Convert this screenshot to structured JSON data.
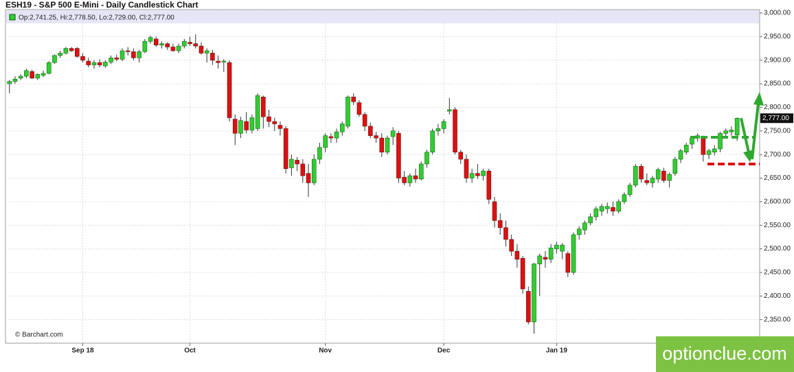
{
  "chart_data": {
    "type": "candlestick",
    "title": "ESH19 - S&P 500 E-Mini - Daily Candlestick Chart",
    "legend_text": "Op:2,741.25, Hi:2,778.50, Lo:2,729.00, Cl:2,777.00",
    "last_price_label": "2,777.00",
    "source": "© Barchart.com",
    "watermark": "optionclue.com",
    "up_color": "#33cc33",
    "down_color": "#dd1111",
    "grid": true,
    "ylim": [
      2300,
      3000
    ],
    "yticks": [
      {
        "value": 2350,
        "label": "2,350.00"
      },
      {
        "value": 2400,
        "label": "2,400.00"
      },
      {
        "value": 2450,
        "label": "2,450.00"
      },
      {
        "value": 2500,
        "label": "2,500.00"
      },
      {
        "value": 2550,
        "label": "2,550.00"
      },
      {
        "value": 2600,
        "label": "2,600.00"
      },
      {
        "value": 2650,
        "label": "2,650.00"
      },
      {
        "value": 2700,
        "label": "2,700.00"
      },
      {
        "value": 2750,
        "label": "2,750.00"
      },
      {
        "value": 2800,
        "label": "2,800.00"
      },
      {
        "value": 2850,
        "label": "2,850.00"
      },
      {
        "value": 2900,
        "label": "2,900.00"
      },
      {
        "value": 2950,
        "label": "2,950.00"
      },
      {
        "value": 3000,
        "label": "3,000.00"
      }
    ],
    "xlim": [
      -0.7,
      133
    ],
    "xticks": [
      {
        "value": 13,
        "label": "Sep 18"
      },
      {
        "value": 32,
        "label": "Oct"
      },
      {
        "value": 56,
        "label": "Nov"
      },
      {
        "value": 77,
        "label": "Dec"
      },
      {
        "value": 97,
        "label": "Jan 19"
      }
    ],
    "candles": [
      [
        2850,
        2858,
        2830,
        2855
      ],
      [
        2855,
        2866,
        2850,
        2860
      ],
      [
        2862,
        2870,
        2858,
        2866
      ],
      [
        2866,
        2882,
        2862,
        2878
      ],
      [
        2876,
        2880,
        2860,
        2862
      ],
      [
        2862,
        2872,
        2858,
        2870
      ],
      [
        2868,
        2878,
        2864,
        2872
      ],
      [
        2872,
        2898,
        2870,
        2895
      ],
      [
        2895,
        2912,
        2892,
        2910
      ],
      [
        2910,
        2920,
        2905,
        2915
      ],
      [
        2915,
        2928,
        2912,
        2925
      ],
      [
        2925,
        2928,
        2918,
        2920
      ],
      [
        2925,
        2928,
        2905,
        2908
      ],
      [
        2908,
        2915,
        2895,
        2900
      ],
      [
        2898,
        2905,
        2885,
        2890
      ],
      [
        2890,
        2900,
        2882,
        2895
      ],
      [
        2895,
        2902,
        2885,
        2890
      ],
      [
        2888,
        2900,
        2884,
        2896
      ],
      [
        2896,
        2910,
        2892,
        2905
      ],
      [
        2905,
        2912,
        2898,
        2902
      ],
      [
        2902,
        2925,
        2898,
        2920
      ],
      [
        2920,
        2928,
        2910,
        2918
      ],
      [
        2918,
        2925,
        2900,
        2905
      ],
      [
        2905,
        2922,
        2895,
        2918
      ],
      [
        2918,
        2945,
        2915,
        2940
      ],
      [
        2940,
        2952,
        2935,
        2948
      ],
      [
        2945,
        2950,
        2928,
        2932
      ],
      [
        2932,
        2940,
        2925,
        2935
      ],
      [
        2935,
        2938,
        2922,
        2928
      ],
      [
        2928,
        2935,
        2918,
        2920
      ],
      [
        2920,
        2935,
        2915,
        2930
      ],
      [
        2930,
        2945,
        2925,
        2940
      ],
      [
        2938,
        2950,
        2930,
        2935
      ],
      [
        2935,
        2955,
        2925,
        2930
      ],
      [
        2930,
        2938,
        2912,
        2915
      ],
      [
        2915,
        2925,
        2895,
        2920
      ],
      [
        2915,
        2922,
        2890,
        2900
      ],
      [
        2898,
        2910,
        2882,
        2895
      ],
      [
        2896,
        2902,
        2875,
        2898
      ],
      [
        2895,
        2900,
        2770,
        2778
      ],
      [
        2775,
        2785,
        2720,
        2745
      ],
      [
        2745,
        2780,
        2735,
        2772
      ],
      [
        2770,
        2790,
        2745,
        2752
      ],
      [
        2752,
        2785,
        2745,
        2778
      ],
      [
        2755,
        2830,
        2750,
        2825
      ],
      [
        2822,
        2825,
        2755,
        2780
      ],
      [
        2780,
        2795,
        2758,
        2770
      ],
      [
        2770,
        2778,
        2750,
        2765
      ],
      [
        2762,
        2770,
        2740,
        2755
      ],
      [
        2755,
        2760,
        2660,
        2670
      ],
      [
        2672,
        2700,
        2655,
        2690
      ],
      [
        2688,
        2695,
        2665,
        2680
      ],
      [
        2680,
        2690,
        2640,
        2655
      ],
      [
        2660,
        2680,
        2610,
        2640
      ],
      [
        2640,
        2700,
        2635,
        2690
      ],
      [
        2690,
        2725,
        2680,
        2715
      ],
      [
        2715,
        2745,
        2705,
        2740
      ],
      [
        2738,
        2745,
        2725,
        2735
      ],
      [
        2735,
        2755,
        2725,
        2748
      ],
      [
        2748,
        2770,
        2740,
        2765
      ],
      [
        2760,
        2825,
        2755,
        2822
      ],
      [
        2822,
        2830,
        2805,
        2812
      ],
      [
        2810,
        2815,
        2780,
        2785
      ],
      [
        2785,
        2790,
        2750,
        2760
      ],
      [
        2760,
        2768,
        2735,
        2740
      ],
      [
        2740,
        2748,
        2725,
        2735
      ],
      [
        2735,
        2745,
        2695,
        2705
      ],
      [
        2705,
        2740,
        2700,
        2735
      ],
      [
        2738,
        2758,
        2720,
        2750
      ],
      [
        2745,
        2750,
        2640,
        2650
      ],
      [
        2652,
        2665,
        2635,
        2640
      ],
      [
        2640,
        2660,
        2632,
        2655
      ],
      [
        2655,
        2670,
        2640,
        2648
      ],
      [
        2648,
        2685,
        2645,
        2680
      ],
      [
        2680,
        2710,
        2672,
        2705
      ],
      [
        2705,
        2755,
        2700,
        2750
      ],
      [
        2750,
        2765,
        2740,
        2755
      ],
      [
        2755,
        2775,
        2745,
        2770
      ],
      [
        2792,
        2820,
        2785,
        2795
      ],
      [
        2795,
        2800,
        2700,
        2705
      ],
      [
        2705,
        2710,
        2680,
        2690
      ],
      [
        2690,
        2700,
        2640,
        2650
      ],
      [
        2650,
        2670,
        2640,
        2660
      ],
      [
        2660,
        2680,
        2648,
        2655
      ],
      [
        2655,
        2670,
        2645,
        2665
      ],
      [
        2665,
        2670,
        2595,
        2605
      ],
      [
        2600,
        2610,
        2545,
        2560
      ],
      [
        2560,
        2575,
        2530,
        2545
      ],
      [
        2545,
        2560,
        2505,
        2520
      ],
      [
        2520,
        2530,
        2485,
        2495
      ],
      [
        2495,
        2510,
        2460,
        2478
      ],
      [
        2480,
        2485,
        2405,
        2415
      ],
      [
        2410,
        2420,
        2340,
        2345
      ],
      [
        2345,
        2470,
        2320,
        2468
      ],
      [
        2468,
        2490,
        2400,
        2485
      ],
      [
        2482,
        2495,
        2460,
        2478
      ],
      [
        2478,
        2510,
        2470,
        2502
      ],
      [
        2500,
        2515,
        2490,
        2508
      ],
      [
        2495,
        2512,
        2478,
        2508
      ],
      [
        2490,
        2495,
        2440,
        2450
      ],
      [
        2450,
        2535,
        2445,
        2530
      ],
      [
        2530,
        2548,
        2520,
        2542
      ],
      [
        2540,
        2560,
        2530,
        2555
      ],
      [
        2555,
        2575,
        2550,
        2568
      ],
      [
        2568,
        2590,
        2560,
        2585
      ],
      [
        2580,
        2595,
        2570,
        2590
      ],
      [
        2585,
        2598,
        2575,
        2590
      ],
      [
        2588,
        2600,
        2570,
        2580
      ],
      [
        2580,
        2605,
        2575,
        2600
      ],
      [
        2600,
        2620,
        2595,
        2615
      ],
      [
        2615,
        2640,
        2610,
        2635
      ],
      [
        2635,
        2680,
        2630,
        2675
      ],
      [
        2675,
        2680,
        2640,
        2648
      ],
      [
        2645,
        2660,
        2635,
        2640
      ],
      [
        2640,
        2655,
        2630,
        2650
      ],
      [
        2648,
        2672,
        2640,
        2668
      ],
      [
        2665,
        2672,
        2640,
        2645
      ],
      [
        2645,
        2662,
        2630,
        2658
      ],
      [
        2660,
        2695,
        2655,
        2690
      ],
      [
        2690,
        2712,
        2682,
        2708
      ],
      [
        2705,
        2725,
        2700,
        2720
      ],
      [
        2722,
        2738,
        2712,
        2735
      ],
      [
        2735,
        2745,
        2728,
        2740
      ],
      [
        2735,
        2740,
        2685,
        2700
      ],
      [
        2700,
        2712,
        2690,
        2708
      ],
      [
        2705,
        2720,
        2698,
        2712
      ],
      [
        2712,
        2748,
        2705,
        2745
      ],
      [
        2745,
        2755,
        2738,
        2750
      ],
      [
        2748,
        2760,
        2740,
        2752
      ],
      [
        2741.25,
        2778.5,
        2729,
        2777
      ]
    ]
  }
}
